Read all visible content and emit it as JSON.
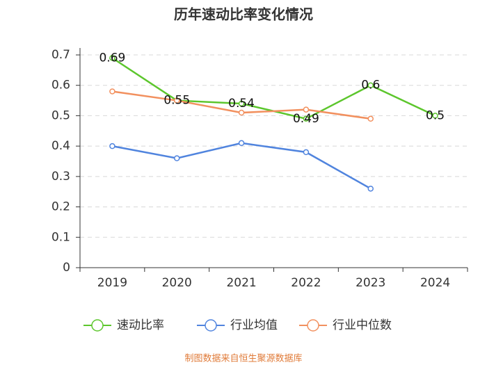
{
  "chart_data": {
    "type": "line",
    "title": "历年速动比率变化情况",
    "categories": [
      "2019",
      "2020",
      "2021",
      "2022",
      "2023",
      "2024"
    ],
    "series": [
      {
        "name": "速动比率",
        "color": "#5cc62c",
        "values": [
          0.69,
          0.55,
          0.54,
          0.49,
          0.6,
          0.5
        ],
        "show_labels": true
      },
      {
        "name": "行业均值",
        "color": "#5084de",
        "values": [
          0.4,
          0.36,
          0.41,
          0.38,
          0.26,
          null
        ]
      },
      {
        "name": "行业中位数",
        "color": "#f2905e",
        "values": [
          0.58,
          0.55,
          0.51,
          0.52,
          0.49,
          null
        ]
      }
    ],
    "ylim": [
      0,
      0.7
    ],
    "yticks": [
      0,
      0.1,
      0.2,
      0.3,
      0.4,
      0.5,
      0.6,
      0.7
    ],
    "grid": true,
    "source": "制图数据来自恒生聚源数据库"
  }
}
